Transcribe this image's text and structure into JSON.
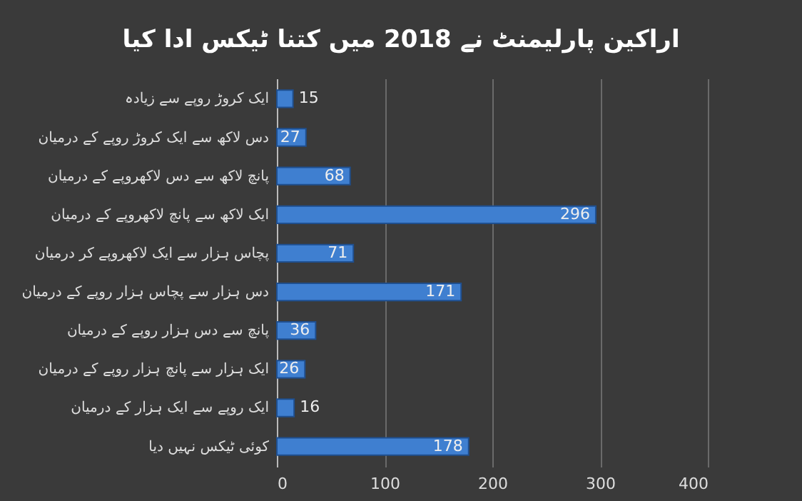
{
  "chart_data": {
    "type": "bar",
    "orientation": "horizontal",
    "title": "اراکین پارلیمنٹ نے 2018 میں کتنا ٹیکس ادا کیا",
    "categories": [
      "ایک کروڑ روپے سے زیادہ",
      "دس لاکھ سے ایک کروڑ روپے کے درمیان",
      "پانچ لاکھ سے دس  لاکھروپے کے درمیان",
      "ایک لاکھ سے پانچ لاکھروپے کے درمیان",
      "پچاس ہزار سے ایک لاکھروپے کر درمیان",
      "دس ہزار سے پچاس ہزار روپے کے درمیان",
      "پانچ سے دس ہزار روپے کے درمیان",
      "ایک ہزار سے پانچ ہزار روپے کے درمیان",
      "ایک روپے سے ایک ہزار کے درمیان",
      "کوئی ٹیکس نہیں دیا"
    ],
    "values": [
      15,
      27,
      68,
      296,
      71,
      171,
      36,
      26,
      16,
      178
    ],
    "color": "#3f7fd0",
    "xlim": [
      0,
      400
    ],
    "xticks": [
      0,
      100,
      200,
      300,
      400
    ],
    "grid": "x",
    "data_labels": true
  }
}
